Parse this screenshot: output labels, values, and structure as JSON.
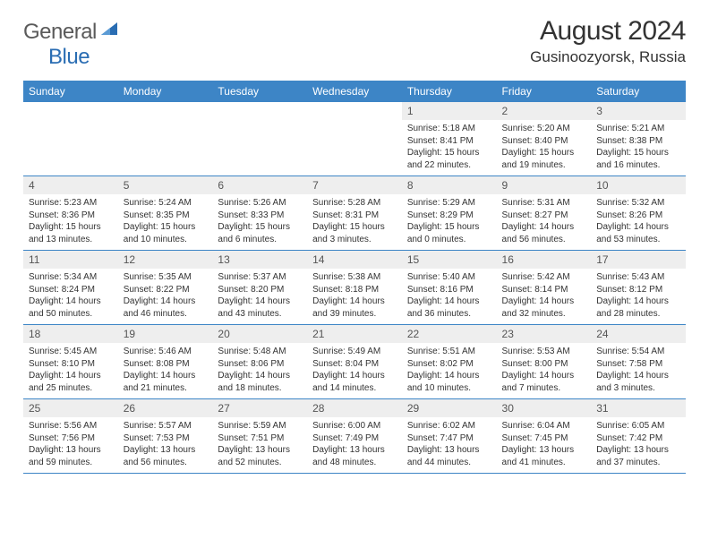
{
  "logo": {
    "text1": "General",
    "text2": "Blue"
  },
  "title": "August 2024",
  "location": "Gusinoozyorsk, Russia",
  "colors": {
    "header_bg": "#3d85c6",
    "header_text": "#ffffff",
    "daynum_bg": "#eeeeee",
    "border": "#3d85c6",
    "logo_gray": "#5a5a5a",
    "logo_blue": "#2a6db3"
  },
  "day_headers": [
    "Sunday",
    "Monday",
    "Tuesday",
    "Wednesday",
    "Thursday",
    "Friday",
    "Saturday"
  ],
  "weeks": [
    [
      {
        "empty": true
      },
      {
        "empty": true
      },
      {
        "empty": true
      },
      {
        "empty": true
      },
      {
        "num": "1",
        "sunrise": "5:18 AM",
        "sunset": "8:41 PM",
        "daylight": "15 hours and 22 minutes."
      },
      {
        "num": "2",
        "sunrise": "5:20 AM",
        "sunset": "8:40 PM",
        "daylight": "15 hours and 19 minutes."
      },
      {
        "num": "3",
        "sunrise": "5:21 AM",
        "sunset": "8:38 PM",
        "daylight": "15 hours and 16 minutes."
      }
    ],
    [
      {
        "num": "4",
        "sunrise": "5:23 AM",
        "sunset": "8:36 PM",
        "daylight": "15 hours and 13 minutes."
      },
      {
        "num": "5",
        "sunrise": "5:24 AM",
        "sunset": "8:35 PM",
        "daylight": "15 hours and 10 minutes."
      },
      {
        "num": "6",
        "sunrise": "5:26 AM",
        "sunset": "8:33 PM",
        "daylight": "15 hours and 6 minutes."
      },
      {
        "num": "7",
        "sunrise": "5:28 AM",
        "sunset": "8:31 PM",
        "daylight": "15 hours and 3 minutes."
      },
      {
        "num": "8",
        "sunrise": "5:29 AM",
        "sunset": "8:29 PM",
        "daylight": "15 hours and 0 minutes."
      },
      {
        "num": "9",
        "sunrise": "5:31 AM",
        "sunset": "8:27 PM",
        "daylight": "14 hours and 56 minutes."
      },
      {
        "num": "10",
        "sunrise": "5:32 AM",
        "sunset": "8:26 PM",
        "daylight": "14 hours and 53 minutes."
      }
    ],
    [
      {
        "num": "11",
        "sunrise": "5:34 AM",
        "sunset": "8:24 PM",
        "daylight": "14 hours and 50 minutes."
      },
      {
        "num": "12",
        "sunrise": "5:35 AM",
        "sunset": "8:22 PM",
        "daylight": "14 hours and 46 minutes."
      },
      {
        "num": "13",
        "sunrise": "5:37 AM",
        "sunset": "8:20 PM",
        "daylight": "14 hours and 43 minutes."
      },
      {
        "num": "14",
        "sunrise": "5:38 AM",
        "sunset": "8:18 PM",
        "daylight": "14 hours and 39 minutes."
      },
      {
        "num": "15",
        "sunrise": "5:40 AM",
        "sunset": "8:16 PM",
        "daylight": "14 hours and 36 minutes."
      },
      {
        "num": "16",
        "sunrise": "5:42 AM",
        "sunset": "8:14 PM",
        "daylight": "14 hours and 32 minutes."
      },
      {
        "num": "17",
        "sunrise": "5:43 AM",
        "sunset": "8:12 PM",
        "daylight": "14 hours and 28 minutes."
      }
    ],
    [
      {
        "num": "18",
        "sunrise": "5:45 AM",
        "sunset": "8:10 PM",
        "daylight": "14 hours and 25 minutes."
      },
      {
        "num": "19",
        "sunrise": "5:46 AM",
        "sunset": "8:08 PM",
        "daylight": "14 hours and 21 minutes."
      },
      {
        "num": "20",
        "sunrise": "5:48 AM",
        "sunset": "8:06 PM",
        "daylight": "14 hours and 18 minutes."
      },
      {
        "num": "21",
        "sunrise": "5:49 AM",
        "sunset": "8:04 PM",
        "daylight": "14 hours and 14 minutes."
      },
      {
        "num": "22",
        "sunrise": "5:51 AM",
        "sunset": "8:02 PM",
        "daylight": "14 hours and 10 minutes."
      },
      {
        "num": "23",
        "sunrise": "5:53 AM",
        "sunset": "8:00 PM",
        "daylight": "14 hours and 7 minutes."
      },
      {
        "num": "24",
        "sunrise": "5:54 AM",
        "sunset": "7:58 PM",
        "daylight": "14 hours and 3 minutes."
      }
    ],
    [
      {
        "num": "25",
        "sunrise": "5:56 AM",
        "sunset": "7:56 PM",
        "daylight": "13 hours and 59 minutes."
      },
      {
        "num": "26",
        "sunrise": "5:57 AM",
        "sunset": "7:53 PM",
        "daylight": "13 hours and 56 minutes."
      },
      {
        "num": "27",
        "sunrise": "5:59 AM",
        "sunset": "7:51 PM",
        "daylight": "13 hours and 52 minutes."
      },
      {
        "num": "28",
        "sunrise": "6:00 AM",
        "sunset": "7:49 PM",
        "daylight": "13 hours and 48 minutes."
      },
      {
        "num": "29",
        "sunrise": "6:02 AM",
        "sunset": "7:47 PM",
        "daylight": "13 hours and 44 minutes."
      },
      {
        "num": "30",
        "sunrise": "6:04 AM",
        "sunset": "7:45 PM",
        "daylight": "13 hours and 41 minutes."
      },
      {
        "num": "31",
        "sunrise": "6:05 AM",
        "sunset": "7:42 PM",
        "daylight": "13 hours and 37 minutes."
      }
    ]
  ],
  "labels": {
    "sunrise": "Sunrise:",
    "sunset": "Sunset:",
    "daylight": "Daylight:"
  }
}
